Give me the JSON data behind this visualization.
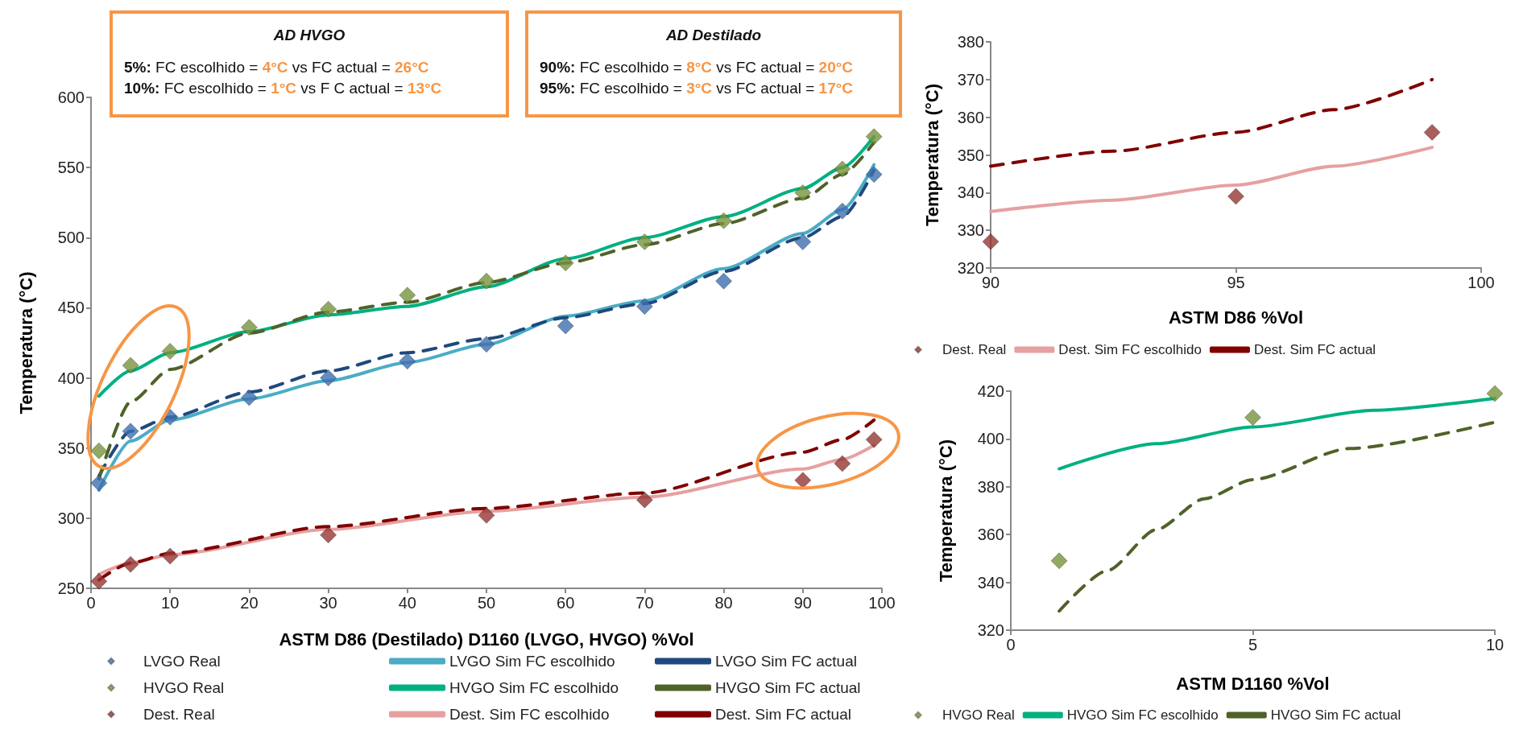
{
  "chart_data": [
    {
      "type": "line",
      "xlabel": "ASTM D86 (Destilado) D1160 (LVGO, HVGO) %Vol",
      "ylabel": "Temperatura (°C)",
      "xlim": [
        0,
        100
      ],
      "xticks": [
        0,
        10,
        20,
        30,
        40,
        50,
        60,
        70,
        80,
        90,
        100
      ],
      "ylim": [
        250,
        600
      ],
      "yticks": [
        250,
        300,
        350,
        400,
        450,
        500,
        550,
        600
      ],
      "legend": "bottom",
      "annotations": [
        "AD HVGO\n5%: FC escolhido = 4°C vs FC actual = 26°C\n10%: FC escolhido = 1°C vs F C actual = 13°C",
        "AD Destilado\n90%: FC escolhido = 8°C vs FC actual = 20°C\n95%: FC escolhido = 3°C vs FC actual = 17°C"
      ],
      "series": [
        {
          "name": "LVGO Real",
          "type": "scatter",
          "marker": "diamond",
          "color": "#3d6fb0",
          "x": [
            1,
            5,
            10,
            20,
            30,
            40,
            50,
            60,
            70,
            80,
            90,
            95,
            99
          ],
          "values": [
            325,
            362,
            372,
            386,
            400,
            412,
            424,
            437,
            451,
            469,
            497,
            519,
            545
          ]
        },
        {
          "name": "LVGO Sim FC escolhido",
          "color": "#4bacc6",
          "line_style": "solid",
          "x": [
            1,
            5,
            10,
            20,
            30,
            40,
            50,
            60,
            70,
            80,
            90,
            95,
            99
          ],
          "values": [
            320,
            355,
            370,
            385,
            398,
            411,
            424,
            444,
            455,
            478,
            503,
            520,
            552
          ]
        },
        {
          "name": "LVGO Sim FC actual",
          "color": "#1f497d",
          "line_style": "dashed",
          "x": [
            1,
            5,
            10,
            20,
            30,
            40,
            50,
            60,
            70,
            80,
            90,
            95,
            99
          ],
          "values": [
            330,
            362,
            372,
            390,
            405,
            418,
            428,
            443,
            453,
            476,
            500,
            515,
            548
          ]
        },
        {
          "name": "HVGO Real",
          "type": "scatter",
          "marker": "diamond",
          "color": "#77933c",
          "x": [
            1,
            5,
            10,
            20,
            30,
            40,
            50,
            60,
            70,
            80,
            90,
            95,
            99
          ],
          "values": [
            348,
            409,
            419,
            436,
            449,
            459,
            469,
            482,
            497,
            512,
            532,
            549,
            572
          ]
        },
        {
          "name": "HVGO Sim FC escolhido",
          "color": "#00b080",
          "line_style": "solid",
          "x": [
            1,
            5,
            10,
            20,
            30,
            40,
            50,
            60,
            70,
            80,
            90,
            95,
            99
          ],
          "values": [
            387,
            405,
            418,
            433,
            445,
            451,
            465,
            485,
            500,
            515,
            535,
            550,
            572
          ]
        },
        {
          "name": "HVGO Sim FC actual",
          "color": "#4f6228",
          "line_style": "dashed",
          "x": [
            1,
            5,
            10,
            20,
            30,
            40,
            50,
            60,
            70,
            80,
            90,
            95,
            99
          ],
          "values": [
            328,
            383,
            406,
            432,
            447,
            454,
            468,
            482,
            495,
            510,
            528,
            545,
            568
          ]
        },
        {
          "name": "Dest. Real",
          "type": "scatter",
          "marker": "diamond",
          "color": "#953735",
          "x": [
            1,
            5,
            10,
            30,
            50,
            70,
            90,
            95,
            99
          ],
          "values": [
            255,
            267,
            273,
            288,
            302,
            313,
            327,
            339,
            356
          ]
        },
        {
          "name": "Dest. Sim FC escolhido",
          "color": "#e6a0a0",
          "line_style": "solid",
          "x": [
            1,
            5,
            10,
            30,
            50,
            70,
            90,
            95,
            99
          ],
          "values": [
            260,
            268,
            274,
            292,
            305,
            315,
            335,
            342,
            352
          ]
        },
        {
          "name": "Dest. Sim FC actual",
          "color": "#800000",
          "line_style": "dashed",
          "x": [
            1,
            5,
            10,
            30,
            50,
            70,
            90,
            95,
            99
          ],
          "values": [
            256,
            268,
            275,
            294,
            307,
            318,
            347,
            356,
            370
          ]
        }
      ]
    },
    {
      "type": "line",
      "xlabel": "ASTM D86 %Vol",
      "ylabel": "Temperatura (°C)",
      "xlim": [
        90,
        100
      ],
      "xticks": [
        90,
        95,
        100
      ],
      "ylim": [
        320,
        380
      ],
      "yticks": [
        320,
        330,
        340,
        350,
        360,
        370,
        380
      ],
      "legend": "bottom",
      "series": [
        {
          "name": "Dest. Real",
          "type": "scatter",
          "marker": "diamond",
          "color": "#953735",
          "x": [
            90,
            95,
            99
          ],
          "values": [
            327,
            339,
            356
          ]
        },
        {
          "name": "Dest. Sim FC escolhido",
          "color": "#e6a0a0",
          "line_style": "solid",
          "x": [
            90,
            92.5,
            95,
            97,
            99
          ],
          "values": [
            335,
            338,
            342,
            347,
            352
          ]
        },
        {
          "name": "Dest. Sim FC actual",
          "color": "#800000",
          "line_style": "dashed",
          "x": [
            90,
            92.5,
            95,
            97,
            99
          ],
          "values": [
            347,
            351,
            356,
            362,
            370
          ]
        }
      ]
    },
    {
      "type": "line",
      "xlabel": "ASTM D1160 %Vol",
      "ylabel": "Temperatura (°C)",
      "xlim": [
        0,
        10
      ],
      "xticks": [
        0,
        5,
        10
      ],
      "ylim": [
        320,
        420
      ],
      "yticks": [
        320,
        340,
        360,
        380,
        400,
        420
      ],
      "legend": "bottom",
      "series": [
        {
          "name": "HVGO Real",
          "type": "scatter",
          "marker": "diamond",
          "color": "#77933c",
          "x": [
            1,
            5,
            10
          ],
          "values": [
            349,
            409,
            419
          ]
        },
        {
          "name": "HVGO Sim FC escolhido",
          "color": "#00b080",
          "line_style": "solid",
          "x": [
            1,
            3,
            5,
            7.5,
            10
          ],
          "values": [
            387.5,
            398,
            405,
            412,
            417
          ]
        },
        {
          "name": "HVGO Sim FC actual",
          "color": "#4f6228",
          "line_style": "dashed",
          "x": [
            1,
            2,
            3,
            4,
            5,
            7,
            10
          ],
          "values": [
            328,
            345,
            362,
            375,
            383,
            396,
            407
          ]
        }
      ]
    }
  ]
}
